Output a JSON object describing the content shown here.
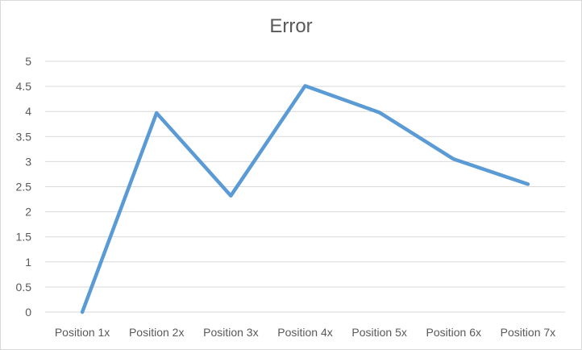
{
  "chart_data": {
    "type": "line",
    "title": "Error",
    "categories": [
      "Position 1x",
      "Position 2x",
      "Position 3x",
      "Position 4x",
      "Position 5x",
      "Position 6x",
      "Position 7x"
    ],
    "series": [
      {
        "values": [
          0,
          3.97,
          2.32,
          4.51,
          3.98,
          3.05,
          2.55
        ]
      }
    ],
    "ylim": [
      0,
      5
    ],
    "yticks": [
      "0",
      "0.5",
      "1",
      "1.5",
      "2",
      "2.5",
      "3",
      "3.5",
      "4",
      "4.5",
      "5"
    ],
    "grid": true,
    "line_color": "#5B9BD5",
    "grid_color": "#d9d9d9"
  }
}
